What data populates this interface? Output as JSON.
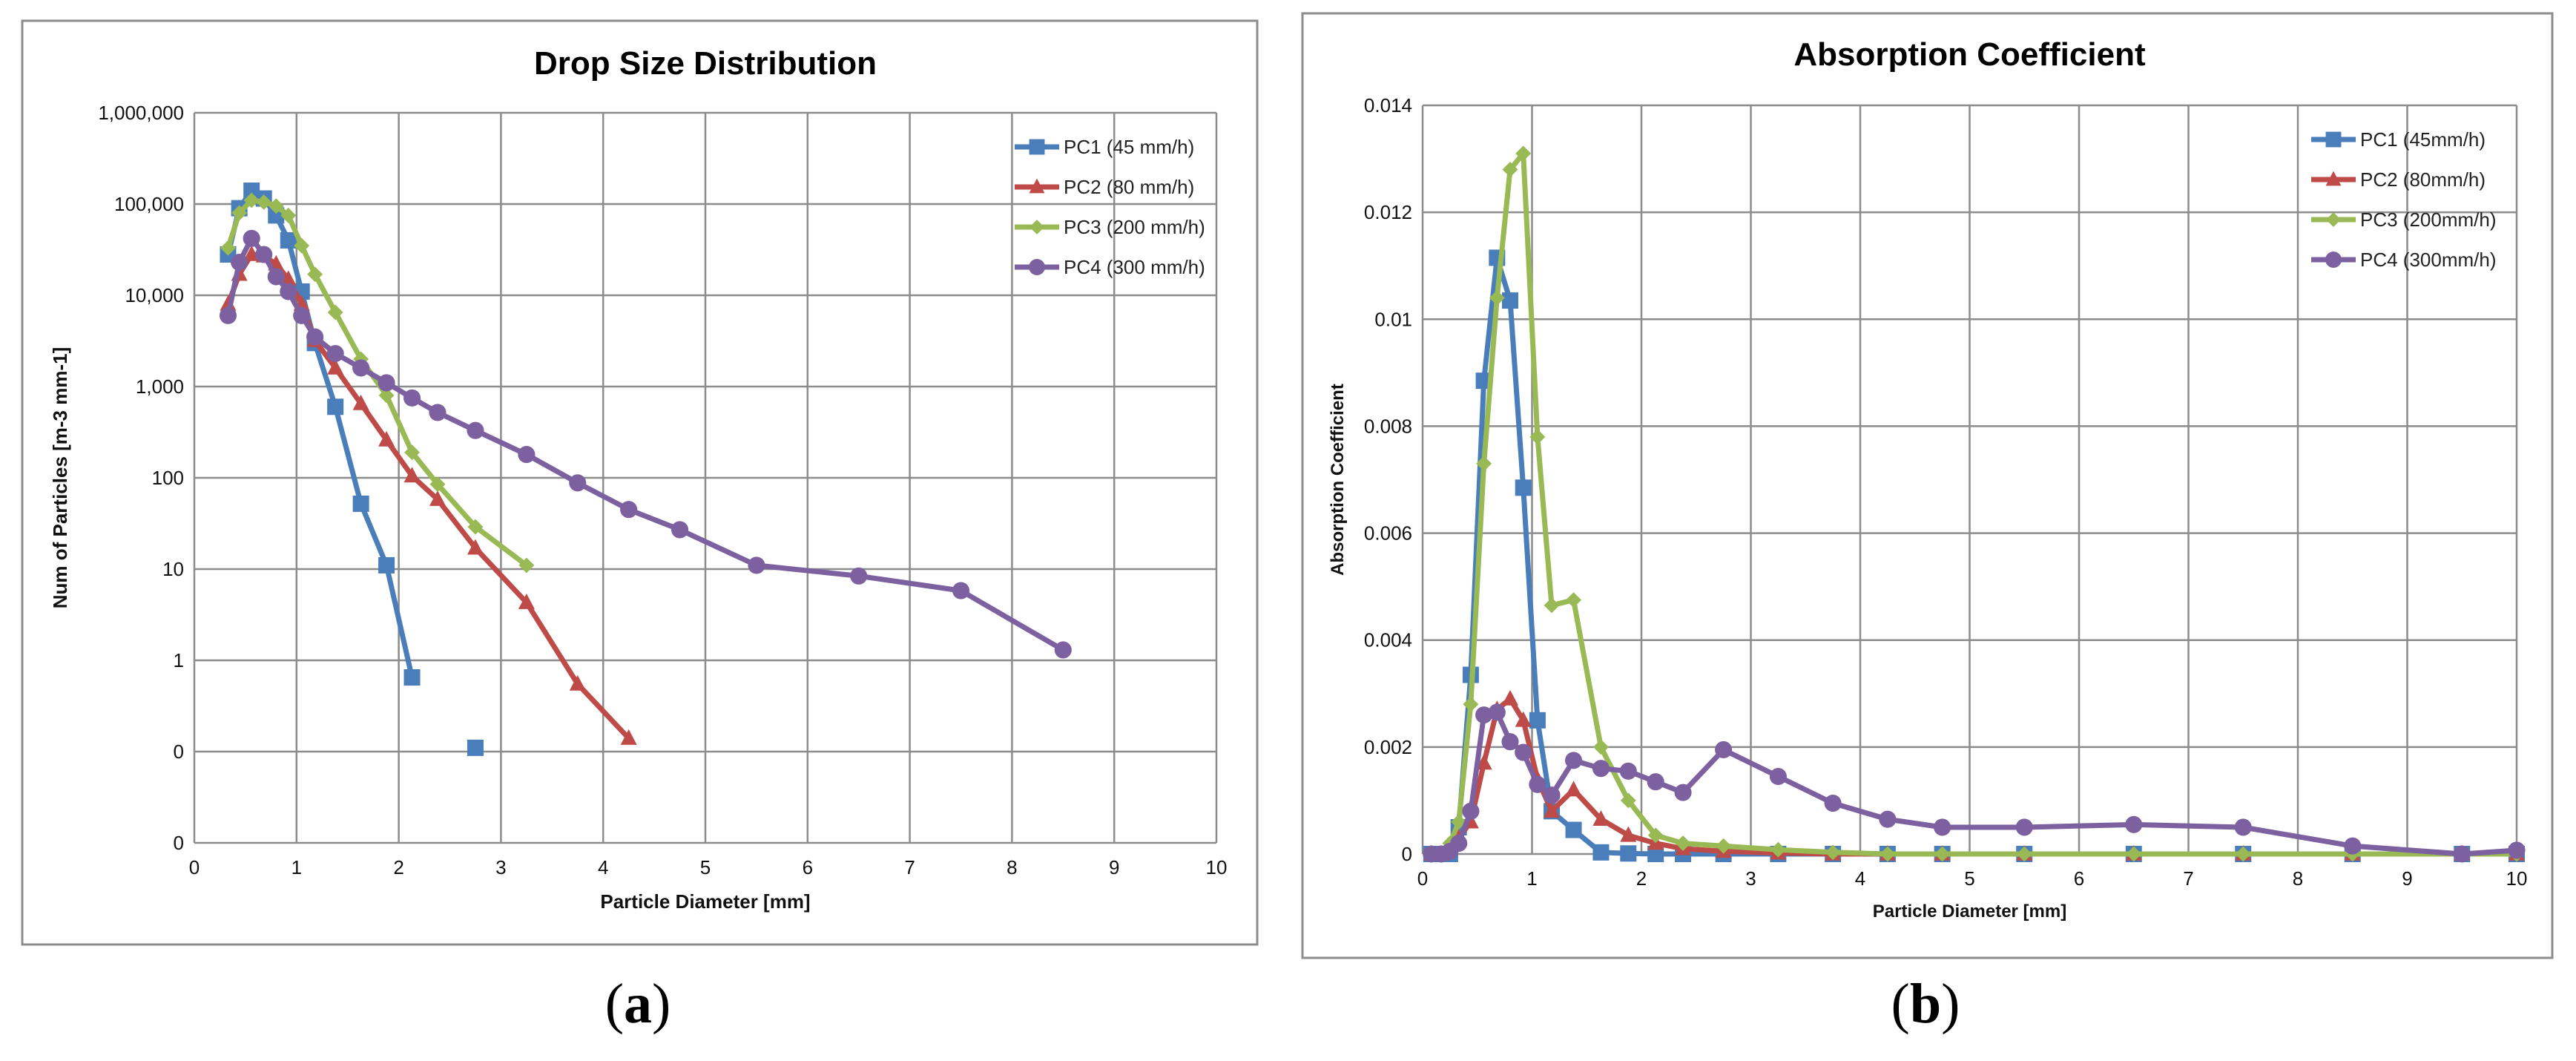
{
  "chart_data": [
    {
      "id": "a",
      "type": "line",
      "panel_label": "(a)",
      "panel_letter": "a",
      "title": "Drop Size Distribution",
      "xlabel": "Particle Diameter [mm]",
      "ylabel": "Num of Particles [m-3 mm-1]",
      "yscale": "log",
      "xlim": [
        0,
        10
      ],
      "ylim": [
        0.01,
        1000000
      ],
      "xticks": [
        0,
        1,
        2,
        3,
        4,
        5,
        6,
        7,
        8,
        9,
        10
      ],
      "xtick_labels": [
        "0",
        "1",
        "2",
        "3",
        "4",
        "5",
        "6",
        "7",
        "8",
        "9",
        "10"
      ],
      "yticks": [
        0.01,
        0.1,
        1,
        10,
        100,
        1000,
        10000,
        100000,
        1000000
      ],
      "ytick_labels": [
        "0",
        "0",
        "1",
        "10",
        "100",
        "1,000",
        "10,000",
        "100,000",
        "1,000,000"
      ],
      "grid": true,
      "legend_position": "top-right",
      "series": [
        {
          "name": "PC1 (45 mm/h)",
          "color": "#4a7ebb",
          "marker": "square",
          "segments": [
            {
              "x": [
                0.33,
                0.44,
                0.56,
                0.68,
                0.8,
                0.92,
                1.05,
                1.18,
                1.38,
                1.63,
                1.88,
                2.13
              ],
              "y": [
                28000,
                90000,
                140000,
                115000,
                75000,
                40000,
                11000,
                3000,
                600,
                52,
                11,
                0.65
              ]
            },
            {
              "x": [
                2.75
              ],
              "y": [
                0.11
              ]
            }
          ]
        },
        {
          "name": "PC2 (80 mm/h)",
          "color": "#be4b48",
          "marker": "triangle",
          "segments": [
            {
              "x": [
                0.33,
                0.44,
                0.56,
                0.68,
                0.8,
                0.92,
                1.05,
                1.18,
                1.38,
                1.63,
                1.88,
                2.13,
                2.38,
                2.75,
                3.25,
                3.75,
                4.25
              ],
              "y": [
                8000,
                17000,
                28000,
                27000,
                22000,
                15000,
                8000,
                3200,
                1600,
                650,
                260,
                105,
                58,
                17,
                4.3,
                0.55,
                0.14
              ]
            }
          ]
        },
        {
          "name": "PC3 (200 mm/h)",
          "color": "#98b954",
          "marker": "diamond",
          "segments": [
            {
              "x": [
                0.33,
                0.44,
                0.56,
                0.68,
                0.8,
                0.92,
                1.05,
                1.18,
                1.38,
                1.63,
                1.88,
                2.13,
                2.38,
                2.75,
                3.25
              ],
              "y": [
                33000,
                80000,
                110000,
                105000,
                95000,
                75000,
                35000,
                17000,
                6500,
                2000,
                800,
                190,
                85,
                29,
                11
              ]
            }
          ]
        },
        {
          "name": "PC4 (300 mm/h)",
          "color": "#7d60a0",
          "marker": "circle",
          "segments": [
            {
              "x": [
                0.33,
                0.44,
                0.56,
                0.68,
                0.8,
                0.92,
                1.05,
                1.18,
                1.38,
                1.63,
                1.88,
                2.13,
                2.38,
                2.75,
                3.25,
                3.75,
                4.25,
                4.75,
                5.5,
                6.5,
                7.5,
                8.5
              ],
              "y": [
                6000,
                23000,
                42000,
                28000,
                16000,
                11000,
                6000,
                3500,
                2300,
                1600,
                1100,
                750,
                520,
                330,
                180,
                88,
                45,
                27,
                11,
                8.4,
                5.8,
                1.3
              ]
            }
          ]
        }
      ]
    },
    {
      "id": "b",
      "type": "line",
      "panel_label": "(b)",
      "panel_letter": "b",
      "title": "Absorption Coefficient",
      "xlabel": "Particle Diameter [mm]",
      "ylabel": "Absorption Coefficient",
      "yscale": "linear",
      "xlim": [
        0,
        10
      ],
      "ylim": [
        0,
        0.014
      ],
      "xticks": [
        0,
        1,
        2,
        3,
        4,
        5,
        6,
        7,
        8,
        9,
        10
      ],
      "xtick_labels": [
        "0",
        "1",
        "2",
        "3",
        "4",
        "5",
        "6",
        "7",
        "8",
        "9",
        "10"
      ],
      "yticks": [
        0,
        0.002,
        0.004,
        0.006,
        0.008,
        0.01,
        0.012,
        0.014
      ],
      "ytick_labels": [
        "0",
        "0.002",
        "0.004",
        "0.006",
        "0.008",
        "0.01",
        "0.012",
        "0.014"
      ],
      "grid": true,
      "legend_position": "top-right",
      "series": [
        {
          "name": "PC1 (45mm/h)",
          "color": "#4a7ebb",
          "marker": "square",
          "segments": [
            {
              "x": [
                0.08,
                0.17,
                0.25,
                0.33,
                0.44,
                0.56,
                0.68,
                0.8,
                0.92,
                1.05,
                1.18,
                1.38,
                1.63,
                1.88,
                2.13,
                2.38,
                2.75,
                3.25,
                3.75,
                4.25,
                4.75,
                5.5,
                6.5,
                7.5,
                8.5,
                9.5,
                10
              ],
              "y": [
                0,
                0,
                0,
                0.0005,
                0.00335,
                0.00885,
                0.01115,
                0.01035,
                0.00685,
                0.0025,
                0.0008,
                0.00045,
                3e-05,
                1e-05,
                0,
                0,
                0,
                0,
                0,
                0,
                0,
                0,
                0,
                0,
                0,
                0,
                0
              ]
            }
          ]
        },
        {
          "name": "PC2 (80mm/h)",
          "color": "#be4b48",
          "marker": "triangle",
          "segments": [
            {
              "x": [
                0.08,
                0.17,
                0.25,
                0.33,
                0.44,
                0.56,
                0.68,
                0.8,
                0.92,
                1.05,
                1.18,
                1.38,
                1.63,
                1.88,
                2.13,
                2.38,
                2.75,
                3.25,
                3.75,
                4.25,
                4.75,
                5.5,
                6.5,
                7.5,
                8.5,
                9.5,
                10
              ],
              "y": [
                0,
                0,
                0.0001,
                0.0003,
                0.0006,
                0.0017,
                0.0027,
                0.0029,
                0.0025,
                0.0014,
                0.0008,
                0.0012,
                0.00065,
                0.00035,
                0.0002,
                0.0001,
                5e-05,
                2e-05,
                0,
                0,
                0,
                0,
                0,
                0,
                0,
                0,
                0
              ]
            }
          ]
        },
        {
          "name": "PC3 (200mm/h)",
          "color": "#98b954",
          "marker": "diamond",
          "segments": [
            {
              "x": [
                0.08,
                0.17,
                0.25,
                0.33,
                0.44,
                0.56,
                0.68,
                0.8,
                0.92,
                1.05,
                1.18,
                1.38,
                1.63,
                1.88,
                2.13,
                2.38,
                2.75,
                3.25,
                3.75,
                4.25,
                4.75,
                5.5,
                6.5,
                7.5,
                8.5,
                9.5,
                10
              ],
              "y": [
                0,
                0,
                0.0002,
                0.0006,
                0.0028,
                0.0073,
                0.0104,
                0.0128,
                0.0131,
                0.0078,
                0.00465,
                0.00475,
                0.002,
                0.001,
                0.00035,
                0.0002,
                0.00015,
                8e-05,
                3e-05,
                0,
                0,
                0,
                0,
                0,
                0,
                0,
                0
              ]
            }
          ]
        },
        {
          "name": "PC4 (300mm/h)",
          "color": "#7d60a0",
          "marker": "circle",
          "segments": [
            {
              "x": [
                0.08,
                0.17,
                0.25,
                0.33,
                0.44,
                0.56,
                0.68,
                0.8,
                0.92,
                1.05,
                1.18,
                1.38,
                1.63,
                1.88,
                2.13,
                2.38,
                2.75,
                3.25,
                3.75,
                4.25,
                4.75,
                5.5,
                6.5,
                7.5,
                8.5,
                9.5,
                10
              ],
              "y": [
                0,
                0,
                5e-05,
                0.0002,
                0.0008,
                0.0026,
                0.00265,
                0.0021,
                0.0019,
                0.0013,
                0.0011,
                0.00175,
                0.0016,
                0.00155,
                0.00135,
                0.00115,
                0.00195,
                0.00145,
                0.00095,
                0.00065,
                0.0005,
                0.0005,
                0.00055,
                0.0005,
                0.00015,
                0,
                7e-05
              ]
            }
          ]
        }
      ]
    }
  ]
}
